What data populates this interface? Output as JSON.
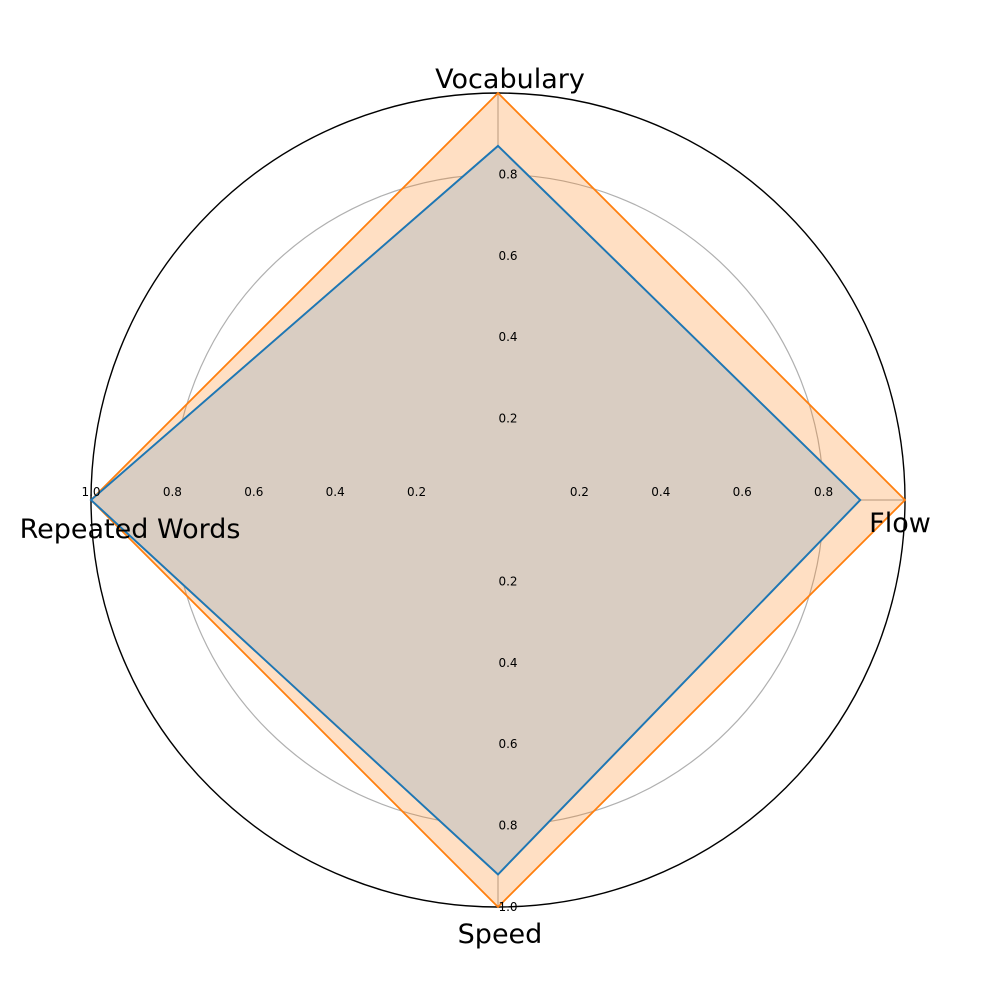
{
  "chart_data": {
    "type": "radar",
    "axes": [
      "Vocabulary",
      "Flow",
      "Speed",
      "Repeated Words"
    ],
    "rlim": [
      0,
      1.0
    ],
    "rticks": [
      0.2,
      0.4,
      0.6,
      0.8,
      1.0
    ],
    "rtick_labels": [
      "0.2",
      "0.4",
      "0.6",
      "0.8",
      "1.0"
    ],
    "grid": true,
    "series": [
      {
        "values": [
          0.87,
          0.89,
          0.92,
          1.0
        ],
        "color": "#1f77b4",
        "fill": "#1f77b4",
        "fill_alpha": 0.0
      },
      {
        "values": [
          1.0,
          1.0,
          1.0,
          1.0
        ],
        "color": "#ff7f0e",
        "fill": "#ff7f0e",
        "fill_alpha": 0.25
      }
    ],
    "overlap_fill": "#d9cdc2"
  }
}
